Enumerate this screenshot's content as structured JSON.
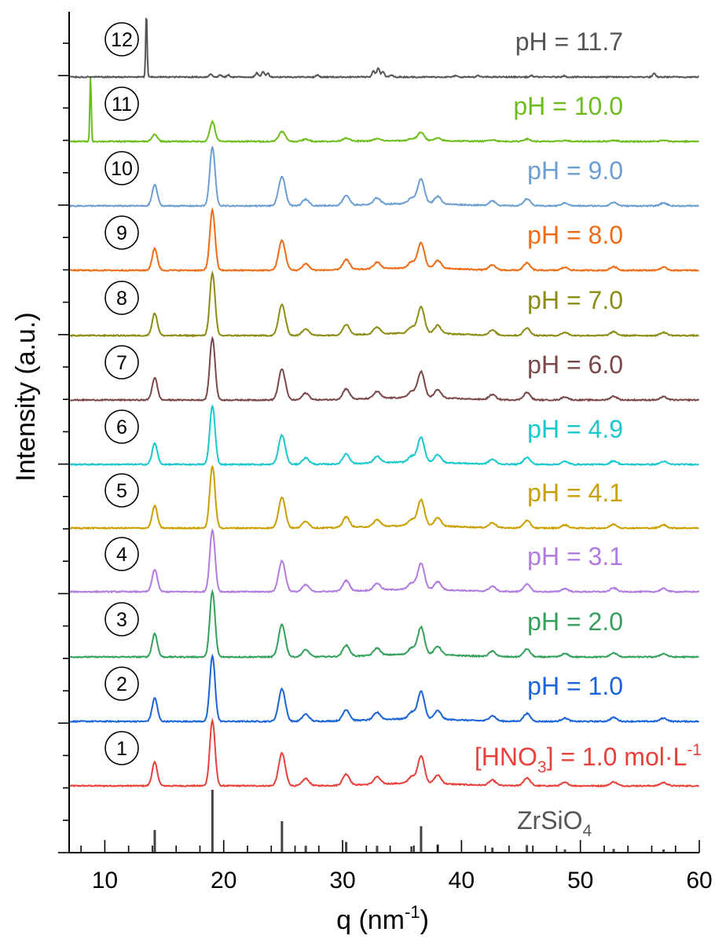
{
  "chart_data": {
    "type": "line",
    "title": "",
    "xlabel": "q (nm",
    "xlabel_sup": "-1",
    "xlabel_end": ")",
    "ylabel": "Intensity (a.u.)",
    "xlim": [
      7,
      60
    ],
    "x_ticks": [
      "10",
      "20",
      "30",
      "40",
      "50",
      "60"
    ],
    "x_tick_values": [
      10,
      20,
      30,
      40,
      50,
      60
    ],
    "grid": false,
    "reference": {
      "label": "ZrSiO",
      "label_sub": "4",
      "color": "#444444",
      "sticks": [
        {
          "q": 14.2,
          "h": 0.36
        },
        {
          "q": 19.05,
          "h": 1.0
        },
        {
          "q": 24.9,
          "h": 0.5
        },
        {
          "q": 26.9,
          "h": 0.11
        },
        {
          "q": 30.3,
          "h": 0.17
        },
        {
          "q": 32.9,
          "h": 0.11
        },
        {
          "q": 35.8,
          "h": 0.1
        },
        {
          "q": 36.6,
          "h": 0.42
        },
        {
          "q": 38.0,
          "h": 0.13
        },
        {
          "q": 42.6,
          "h": 0.08
        },
        {
          "q": 45.5,
          "h": 0.12
        },
        {
          "q": 48.7,
          "h": 0.05
        },
        {
          "q": 52.8,
          "h": 0.06
        },
        {
          "q": 57.0,
          "h": 0.05
        }
      ]
    },
    "series": [
      {
        "number": "1",
        "name": "[HNO",
        "name_sub": "3",
        "name_mid": "] = 1.0 mol·L",
        "name_sup": "-1",
        "color": "#e8413b",
        "style": "zircon",
        "amp": 1.0
      },
      {
        "number": "2",
        "name": "pH = 1.0",
        "color": "#1a64d8",
        "style": "zircon",
        "amp": 1.0
      },
      {
        "number": "3",
        "name": "pH = 2.0",
        "color": "#34a05c",
        "style": "zircon",
        "amp": 1.0
      },
      {
        "number": "4",
        "name": "pH = 3.1",
        "color": "#b27be0",
        "style": "zircon",
        "amp": 0.95
      },
      {
        "number": "5",
        "name": "pH = 4.1",
        "color": "#c9a000",
        "style": "zircon",
        "amp": 0.95
      },
      {
        "number": "6",
        "name": "pH = 4.9",
        "color": "#18c8cc",
        "style": "zircon",
        "amp": 0.9
      },
      {
        "number": "7",
        "name": "pH = 6.0",
        "color": "#7a4848",
        "style": "zircon",
        "amp": 0.95
      },
      {
        "number": "8",
        "name": "pH = 7.0",
        "color": "#8c8c14",
        "style": "zircon",
        "amp": 0.95
      },
      {
        "number": "9",
        "name": "pH = 8.0",
        "color": "#f06b14",
        "style": "zircon",
        "amp": 0.92
      },
      {
        "number": "10",
        "name": "pH = 9.0",
        "color": "#6d9ed2",
        "style": "zircon",
        "amp": 0.9
      },
      {
        "number": "11",
        "name": "pH = 10.0",
        "color": "#6cbd1c",
        "style": "weak",
        "amp": 0.3,
        "extra_peak": {
          "q": 8.8,
          "h": 1.0
        }
      },
      {
        "number": "12",
        "name": "pH = 11.7",
        "color": "#555555",
        "style": "other",
        "amp": 0.12,
        "extra_peak": {
          "q": 13.5,
          "h": 1.0
        }
      }
    ]
  }
}
